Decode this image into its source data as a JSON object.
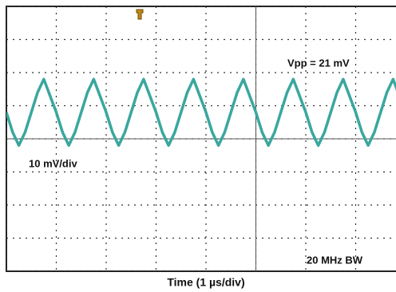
{
  "chart_data": {
    "type": "line",
    "x_label": "Time (1 µs/div)",
    "annotations": [
      "Vpp = 21 mV",
      "10 mV/div",
      "20 MHz BW"
    ],
    "x": [
      0,
      0.125,
      0.25,
      0.375,
      0.5,
      0.625,
      0.75,
      0.875,
      1,
      1.125,
      1.25,
      1.375,
      1.5,
      1.625,
      1.75,
      1.875,
      2,
      2.125,
      2.25,
      2.375,
      2.5,
      2.625,
      2.75,
      2.875,
      3,
      3.125,
      3.25,
      3.375,
      3.5,
      3.625,
      3.75,
      3.875,
      4,
      4.125,
      4.25,
      4.375,
      4.5,
      4.625,
      4.75,
      4.875,
      5,
      5.125,
      5.25,
      5.375,
      5.5,
      5.625,
      5.75,
      5.875,
      6,
      6.125,
      6.25,
      6.375,
      6.5,
      6.625,
      6.75,
      6.875,
      7,
      7.125,
      7.25,
      7.375,
      7.5,
      7.625,
      7.75,
      7.875
    ],
    "series": [
      {
        "color": "#3aa79e",
        "values": [
          8,
          2,
          -2,
          2,
          8,
          14,
          18,
          13,
          8,
          2,
          -2,
          2,
          8,
          14,
          18,
          13,
          8,
          2,
          -2,
          2,
          8,
          14,
          18,
          13,
          8,
          2,
          -2,
          2,
          8,
          14,
          18,
          13,
          8,
          2,
          -2,
          2,
          8,
          14,
          18,
          13,
          8,
          2,
          -2,
          2,
          8,
          14,
          18,
          13,
          8,
          2,
          -2,
          2,
          8,
          14,
          18,
          13,
          8,
          2,
          -2,
          2,
          8,
          14,
          18,
          13
        ]
      }
    ],
    "xlim": [
      0,
      10
    ],
    "ylim": [
      -40,
      40
    ],
    "xticks": [
      0,
      1,
      2,
      3,
      4,
      5,
      6,
      7,
      8,
      9,
      10
    ],
    "yticks": [
      -40,
      -30,
      -20,
      -10,
      0,
      10,
      20,
      30,
      40
    ],
    "grid": true
  }
}
